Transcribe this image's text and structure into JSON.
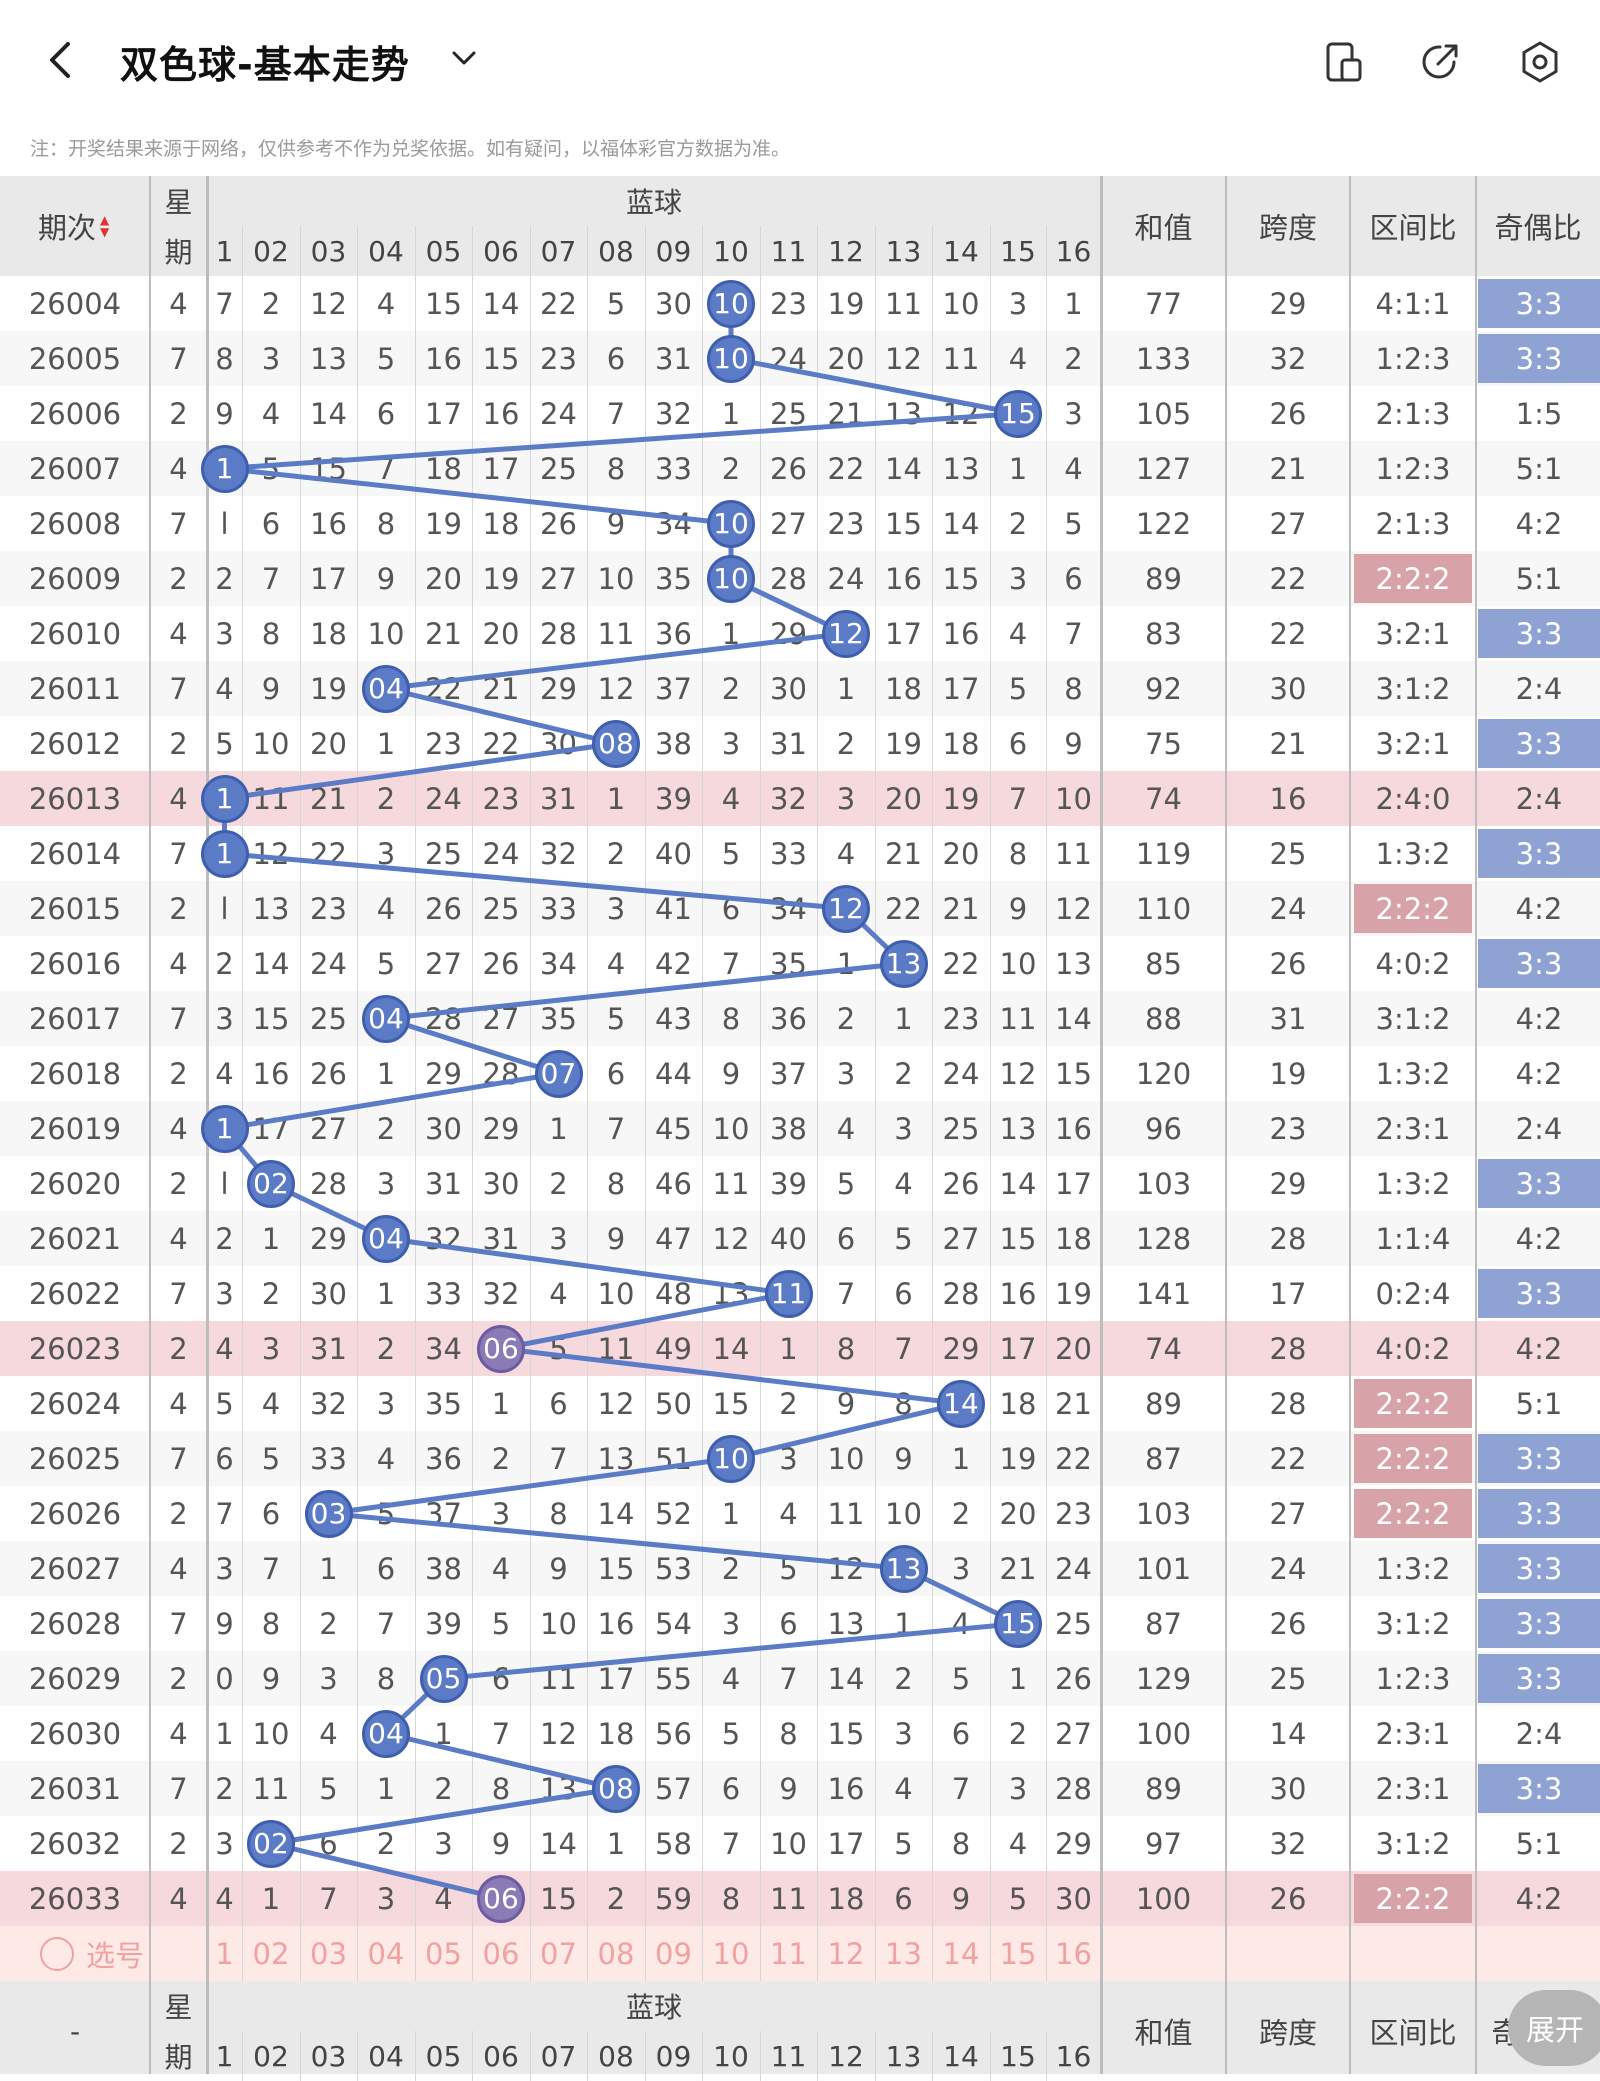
{
  "header": {
    "title": "双色球-基本走势",
    "icons": [
      "back-icon",
      "chevron-down-icon",
      "device-icon",
      "share-icon",
      "settings-icon"
    ]
  },
  "notice": "注：开奖结果来源于网络，仅供参考不作为兑奖依据。如有疑问，以福体彩官方数据为准。",
  "columns": {
    "period": "期次",
    "sort_arrows": "▲▼",
    "week_line1": "星",
    "week_line2": "期",
    "blue_group": "蓝球",
    "blue_numbers": [
      "1",
      "02",
      "03",
      "04",
      "05",
      "06",
      "07",
      "08",
      "09",
      "10",
      "11",
      "12",
      "13",
      "14",
      "15",
      "16"
    ],
    "sum": "和值",
    "span": "跨度",
    "zone_ratio": "区间比",
    "odd_even": "奇偶比"
  },
  "rows": [
    {
      "period": "26004",
      "week": "4",
      "cells": [
        "7",
        "2",
        "12",
        "4",
        "15",
        "14",
        "22",
        "5",
        "30",
        "10",
        "23",
        "19",
        "11",
        "10",
        "3",
        "1"
      ],
      "blue": 10,
      "repeat": false,
      "sum": "77",
      "span": "29",
      "zone": "4:1:1",
      "oe": "3:3",
      "hl": false,
      "zone_hl": false
    },
    {
      "period": "26005",
      "week": "7",
      "cells": [
        "8",
        "3",
        "13",
        "5",
        "16",
        "15",
        "23",
        "6",
        "31",
        "10",
        "24",
        "20",
        "12",
        "11",
        "4",
        "2"
      ],
      "blue": 10,
      "repeat": false,
      "sum": "133",
      "span": "32",
      "zone": "1:2:3",
      "oe": "3:3",
      "hl": false,
      "zone_hl": false
    },
    {
      "period": "26006",
      "week": "2",
      "cells": [
        "9",
        "4",
        "14",
        "6",
        "17",
        "16",
        "24",
        "7",
        "32",
        "1",
        "25",
        "21",
        "13",
        "12",
        "15",
        "3"
      ],
      "blue": 15,
      "repeat": false,
      "sum": "105",
      "span": "26",
      "zone": "2:1:3",
      "oe": "1:5",
      "hl": false,
      "zone_hl": false
    },
    {
      "period": "26007",
      "week": "4",
      "cells": [
        "1",
        "5",
        "15",
        "7",
        "18",
        "17",
        "25",
        "8",
        "33",
        "2",
        "26",
        "22",
        "14",
        "13",
        "1",
        "4"
      ],
      "blue": 1,
      "repeat": false,
      "sum": "127",
      "span": "21",
      "zone": "1:2:3",
      "oe": "5:1",
      "hl": false,
      "zone_hl": false
    },
    {
      "period": "26008",
      "week": "7",
      "cells": [
        "l",
        "6",
        "16",
        "8",
        "19",
        "18",
        "26",
        "9",
        "34",
        "10",
        "27",
        "23",
        "15",
        "14",
        "2",
        "5"
      ],
      "blue": 10,
      "repeat": false,
      "sum": "122",
      "span": "27",
      "zone": "2:1:3",
      "oe": "4:2",
      "hl": false,
      "zone_hl": false
    },
    {
      "period": "26009",
      "week": "2",
      "cells": [
        "2",
        "7",
        "17",
        "9",
        "20",
        "19",
        "27",
        "10",
        "35",
        "10",
        "28",
        "24",
        "16",
        "15",
        "3",
        "6"
      ],
      "blue": 10,
      "repeat": false,
      "sum": "89",
      "span": "22",
      "zone": "2:2:2",
      "oe": "5:1",
      "hl": false,
      "zone_hl": true
    },
    {
      "period": "26010",
      "week": "4",
      "cells": [
        "3",
        "8",
        "18",
        "10",
        "21",
        "20",
        "28",
        "11",
        "36",
        "1",
        "29",
        "12",
        "17",
        "16",
        "4",
        "7"
      ],
      "blue": 12,
      "repeat": false,
      "sum": "83",
      "span": "22",
      "zone": "3:2:1",
      "oe": "3:3",
      "hl": false,
      "zone_hl": false
    },
    {
      "period": "26011",
      "week": "7",
      "cells": [
        "4",
        "9",
        "19",
        "04",
        "22",
        "21",
        "29",
        "12",
        "37",
        "2",
        "30",
        "1",
        "18",
        "17",
        "5",
        "8"
      ],
      "blue": 4,
      "repeat": false,
      "sum": "92",
      "span": "30",
      "zone": "3:1:2",
      "oe": "2:4",
      "hl": false,
      "zone_hl": false
    },
    {
      "period": "26012",
      "week": "2",
      "cells": [
        "5",
        "10",
        "20",
        "1",
        "23",
        "22",
        "30",
        "08",
        "38",
        "3",
        "31",
        "2",
        "19",
        "18",
        "6",
        "9"
      ],
      "blue": 8,
      "repeat": false,
      "sum": "75",
      "span": "21",
      "zone": "3:2:1",
      "oe": "3:3",
      "hl": false,
      "zone_hl": false
    },
    {
      "period": "26013",
      "week": "4",
      "cells": [
        "1",
        "11",
        "21",
        "2",
        "24",
        "23",
        "31",
        "1",
        "39",
        "4",
        "32",
        "3",
        "20",
        "19",
        "7",
        "10"
      ],
      "blue": 1,
      "repeat": false,
      "sum": "74",
      "span": "16",
      "zone": "2:4:0",
      "oe": "2:4",
      "hl": true,
      "zone_hl": false
    },
    {
      "period": "26014",
      "week": "7",
      "cells": [
        "1",
        "12",
        "22",
        "3",
        "25",
        "24",
        "32",
        "2",
        "40",
        "5",
        "33",
        "4",
        "21",
        "20",
        "8",
        "11"
      ],
      "blue": 1,
      "repeat": false,
      "sum": "119",
      "span": "25",
      "zone": "1:3:2",
      "oe": "3:3",
      "hl": false,
      "zone_hl": false
    },
    {
      "period": "26015",
      "week": "2",
      "cells": [
        "l",
        "13",
        "23",
        "4",
        "26",
        "25",
        "33",
        "3",
        "41",
        "6",
        "34",
        "12",
        "22",
        "21",
        "9",
        "12"
      ],
      "blue": 12,
      "repeat": false,
      "sum": "110",
      "span": "24",
      "zone": "2:2:2",
      "oe": "4:2",
      "hl": false,
      "zone_hl": true
    },
    {
      "period": "26016",
      "week": "4",
      "cells": [
        "2",
        "14",
        "24",
        "5",
        "27",
        "26",
        "34",
        "4",
        "42",
        "7",
        "35",
        "1",
        "13",
        "22",
        "10",
        "13"
      ],
      "blue": 13,
      "repeat": false,
      "sum": "85",
      "span": "26",
      "zone": "4:0:2",
      "oe": "3:3",
      "hl": false,
      "zone_hl": false
    },
    {
      "period": "26017",
      "week": "7",
      "cells": [
        "3",
        "15",
        "25",
        "04",
        "28",
        "27",
        "35",
        "5",
        "43",
        "8",
        "36",
        "2",
        "1",
        "23",
        "11",
        "14"
      ],
      "blue": 4,
      "repeat": false,
      "sum": "88",
      "span": "31",
      "zone": "3:1:2",
      "oe": "4:2",
      "hl": false,
      "zone_hl": false
    },
    {
      "period": "26018",
      "week": "2",
      "cells": [
        "4",
        "16",
        "26",
        "1",
        "29",
        "28",
        "07",
        "6",
        "44",
        "9",
        "37",
        "3",
        "2",
        "24",
        "12",
        "15"
      ],
      "blue": 7,
      "repeat": false,
      "sum": "120",
      "span": "19",
      "zone": "1:3:2",
      "oe": "4:2",
      "hl": false,
      "zone_hl": false
    },
    {
      "period": "26019",
      "week": "4",
      "cells": [
        "1",
        "17",
        "27",
        "2",
        "30",
        "29",
        "1",
        "7",
        "45",
        "10",
        "38",
        "4",
        "3",
        "25",
        "13",
        "16"
      ],
      "blue": 1,
      "repeat": false,
      "sum": "96",
      "span": "23",
      "zone": "2:3:1",
      "oe": "2:4",
      "hl": false,
      "zone_hl": false
    },
    {
      "period": "26020",
      "week": "2",
      "cells": [
        "l",
        "02",
        "28",
        "3",
        "31",
        "30",
        "2",
        "8",
        "46",
        "11",
        "39",
        "5",
        "4",
        "26",
        "14",
        "17"
      ],
      "blue": 2,
      "repeat": false,
      "sum": "103",
      "span": "29",
      "zone": "1:3:2",
      "oe": "3:3",
      "hl": false,
      "zone_hl": false
    },
    {
      "period": "26021",
      "week": "4",
      "cells": [
        "2",
        "1",
        "29",
        "04",
        "32",
        "31",
        "3",
        "9",
        "47",
        "12",
        "40",
        "6",
        "5",
        "27",
        "15",
        "18"
      ],
      "blue": 4,
      "repeat": false,
      "sum": "128",
      "span": "28",
      "zone": "1:1:4",
      "oe": "4:2",
      "hl": false,
      "zone_hl": false
    },
    {
      "period": "26022",
      "week": "7",
      "cells": [
        "3",
        "2",
        "30",
        "1",
        "33",
        "32",
        "4",
        "10",
        "48",
        "13",
        "11",
        "7",
        "6",
        "28",
        "16",
        "19"
      ],
      "blue": 11,
      "repeat": false,
      "sum": "141",
      "span": "17",
      "zone": "0:2:4",
      "oe": "3:3",
      "hl": false,
      "zone_hl": false
    },
    {
      "period": "26023",
      "week": "2",
      "cells": [
        "4",
        "3",
        "31",
        "2",
        "34",
        "06",
        "5",
        "11",
        "49",
        "14",
        "1",
        "8",
        "7",
        "29",
        "17",
        "20"
      ],
      "blue": 6,
      "repeat": true,
      "sum": "74",
      "span": "28",
      "zone": "4:0:2",
      "oe": "4:2",
      "hl": true,
      "zone_hl": false
    },
    {
      "period": "26024",
      "week": "4",
      "cells": [
        "5",
        "4",
        "32",
        "3",
        "35",
        "1",
        "6",
        "12",
        "50",
        "15",
        "2",
        "9",
        "8",
        "14",
        "18",
        "21"
      ],
      "blue": 14,
      "repeat": false,
      "sum": "89",
      "span": "28",
      "zone": "2:2:2",
      "oe": "5:1",
      "hl": false,
      "zone_hl": true
    },
    {
      "period": "26025",
      "week": "7",
      "cells": [
        "6",
        "5",
        "33",
        "4",
        "36",
        "2",
        "7",
        "13",
        "51",
        "10",
        "3",
        "10",
        "9",
        "1",
        "19",
        "22"
      ],
      "blue": 10,
      "repeat": false,
      "sum": "87",
      "span": "22",
      "zone": "2:2:2",
      "oe": "3:3",
      "hl": false,
      "zone_hl": true
    },
    {
      "period": "26026",
      "week": "2",
      "cells": [
        "7",
        "6",
        "03",
        "5",
        "37",
        "3",
        "8",
        "14",
        "52",
        "1",
        "4",
        "11",
        "10",
        "2",
        "20",
        "23"
      ],
      "blue": 3,
      "repeat": false,
      "sum": "103",
      "span": "27",
      "zone": "2:2:2",
      "oe": "3:3",
      "hl": false,
      "zone_hl": true
    },
    {
      "period": "26027",
      "week": "4",
      "cells": [
        "3",
        "7",
        "1",
        "6",
        "38",
        "4",
        "9",
        "15",
        "53",
        "2",
        "5",
        "12",
        "13",
        "3",
        "21",
        "24"
      ],
      "blue": 13,
      "repeat": false,
      "sum": "101",
      "span": "24",
      "zone": "1:3:2",
      "oe": "3:3",
      "hl": false,
      "zone_hl": false
    },
    {
      "period": "26028",
      "week": "7",
      "cells": [
        "9",
        "8",
        "2",
        "7",
        "39",
        "5",
        "10",
        "16",
        "54",
        "3",
        "6",
        "13",
        "1",
        "4",
        "15",
        "25"
      ],
      "blue": 15,
      "repeat": false,
      "sum": "87",
      "span": "26",
      "zone": "3:1:2",
      "oe": "3:3",
      "hl": false,
      "zone_hl": false
    },
    {
      "period": "26029",
      "week": "2",
      "cells": [
        "0",
        "9",
        "3",
        "8",
        "05",
        "6",
        "11",
        "17",
        "55",
        "4",
        "7",
        "14",
        "2",
        "5",
        "1",
        "26"
      ],
      "blue": 5,
      "repeat": false,
      "sum": "129",
      "span": "25",
      "zone": "1:2:3",
      "oe": "3:3",
      "hl": false,
      "zone_hl": false
    },
    {
      "period": "26030",
      "week": "4",
      "cells": [
        "1",
        "10",
        "4",
        "04",
        "1",
        "7",
        "12",
        "18",
        "56",
        "5",
        "8",
        "15",
        "3",
        "6",
        "2",
        "27"
      ],
      "blue": 4,
      "repeat": false,
      "sum": "100",
      "span": "14",
      "zone": "2:3:1",
      "oe": "2:4",
      "hl": false,
      "zone_hl": false
    },
    {
      "period": "26031",
      "week": "7",
      "cells": [
        "2",
        "11",
        "5",
        "1",
        "2",
        "8",
        "13",
        "08",
        "57",
        "6",
        "9",
        "16",
        "4",
        "7",
        "3",
        "28"
      ],
      "blue": 8,
      "repeat": false,
      "sum": "89",
      "span": "30",
      "zone": "2:3:1",
      "oe": "3:3",
      "hl": false,
      "zone_hl": false
    },
    {
      "period": "26032",
      "week": "2",
      "cells": [
        "3",
        "02",
        "6",
        "2",
        "3",
        "9",
        "14",
        "1",
        "58",
        "7",
        "10",
        "17",
        "5",
        "8",
        "4",
        "29"
      ],
      "blue": 2,
      "repeat": false,
      "sum": "97",
      "span": "32",
      "zone": "3:1:2",
      "oe": "5:1",
      "hl": false,
      "zone_hl": false
    },
    {
      "period": "26033",
      "week": "4",
      "cells": [
        "4",
        "1",
        "7",
        "3",
        "4",
        "06",
        "15",
        "2",
        "59",
        "8",
        "11",
        "18",
        "6",
        "9",
        "5",
        "30"
      ],
      "blue": 6,
      "repeat": true,
      "sum": "100",
      "span": "26",
      "zone": "2:2:2",
      "oe": "4:2",
      "hl": true,
      "zone_hl": true
    }
  ],
  "select_row": {
    "label": "选号",
    "numbers": [
      "1",
      "02",
      "03",
      "04",
      "05",
      "06",
      "07",
      "08",
      "09",
      "10",
      "11",
      "12",
      "13",
      "14",
      "15",
      "16"
    ]
  },
  "footer": {
    "period_dash": "-",
    "odd_even_partial": "奇",
    "expand_label": "展开"
  },
  "colors": {
    "blue_ball": "#5b7bc6",
    "repeat_ball": "#8a7ab6",
    "trend_line": "#5b7bc6",
    "odd_even_highlight": "#8ea2d4",
    "zone_highlight": "#d8a3a8",
    "highlight_row": "#f6d9dc",
    "select_number": "#f0a2a2"
  }
}
